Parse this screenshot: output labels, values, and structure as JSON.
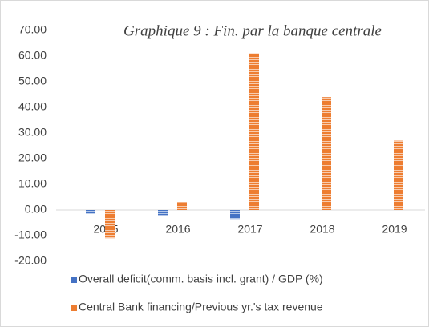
{
  "chart_data": {
    "type": "bar",
    "title": "Graphique 9 : Fin. par la banque centrale",
    "categories": [
      "2015",
      "2016",
      "2017",
      "2018",
      "2019"
    ],
    "series": [
      {
        "name": "Overall deficit(comm. basis incl. grant) / GDP (%)",
        "color": "#4472c4",
        "values": [
          -1.5,
          -2.0,
          -3.5,
          null,
          null
        ]
      },
      {
        "name": "Central Bank financing/Previous yr.'s tax revenue",
        "color": "#ed7d31",
        "values": [
          -11,
          3,
          61,
          44,
          27
        ]
      }
    ],
    "ylim": [
      -20,
      70
    ],
    "yticks": [
      {
        "value": -20,
        "label": "-20.00"
      },
      {
        "value": -10,
        "label": "-10.00"
      },
      {
        "value": 0,
        "label": "0.00"
      },
      {
        "value": 10,
        "label": "10.00"
      },
      {
        "value": 20,
        "label": "20.00"
      },
      {
        "value": 30,
        "label": "30.00"
      },
      {
        "value": 40,
        "label": "40.00"
      },
      {
        "value": 50,
        "label": "50.00"
      },
      {
        "value": 60,
        "label": "60.00"
      },
      {
        "value": 70,
        "label": "70.00"
      }
    ],
    "grid": false,
    "legend": "bottom"
  }
}
